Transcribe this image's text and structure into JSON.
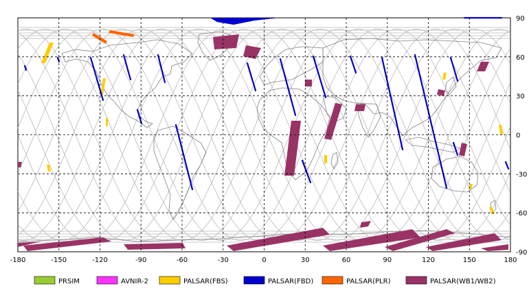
{
  "map": {
    "x_ticks": [
      "-180",
      "-150",
      "-120",
      "-90",
      "-60",
      "-30",
      "0",
      "30",
      "60",
      "90",
      "120",
      "150",
      "180"
    ],
    "y_ticks": [
      "90",
      "60",
      "30",
      "0",
      "-30",
      "-60",
      "-90"
    ]
  },
  "legend": [
    {
      "label": "PRSIM",
      "color": "#99cc33"
    },
    {
      "label": "AVNIR-2",
      "color": "#ff33ff"
    },
    {
      "label": "PALSAR(FBS)",
      "color": "#ffcc00"
    },
    {
      "label": "PALSAR(FBD)",
      "color": "#0000cc"
    },
    {
      "label": "PALSAR(PLR)",
      "color": "#ff6600"
    },
    {
      "label": "PALSAR(WB1/WB2)",
      "color": "#993366"
    }
  ],
  "colors": {
    "frame": "#000000",
    "grid": "#000000",
    "coast": "#808080",
    "orbit": "#b0b0b0",
    "wb": "#993366",
    "fbd": "#0000cc",
    "fbs": "#ffcc00",
    "plr": "#ff6600"
  }
}
